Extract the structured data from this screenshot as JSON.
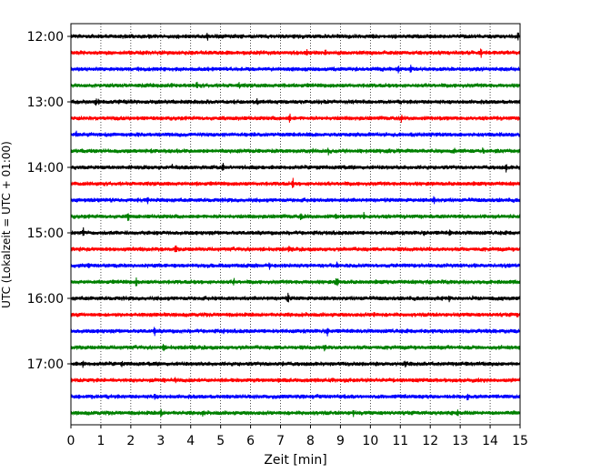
{
  "chart_data": {
    "type": "line",
    "title": "",
    "xlabel": "Zeit  [min]",
    "ylabel": "UTC (Lokalzeit = UTC + 01:00)",
    "xlim": [
      0,
      15
    ],
    "x_ticks": [
      "0",
      "1",
      "2",
      "3",
      "4",
      "5",
      "6",
      "7",
      "8",
      "9",
      "10",
      "11",
      "12",
      "13",
      "14",
      "15"
    ],
    "y_ticks": [
      "12:00",
      "13:00",
      "14:00",
      "15:00",
      "16:00",
      "17:00"
    ],
    "grid": "vertical dotted",
    "legend": "none",
    "row_minutes": 15,
    "series_colors": [
      "#000000",
      "#ff0000",
      "#0000ff",
      "#008000"
    ],
    "rows": [
      {
        "start": "12:00",
        "color": "#000000"
      },
      {
        "start": "12:15",
        "color": "#ff0000"
      },
      {
        "start": "12:30",
        "color": "#0000ff"
      },
      {
        "start": "12:45",
        "color": "#008000"
      },
      {
        "start": "13:00",
        "color": "#000000"
      },
      {
        "start": "13:15",
        "color": "#ff0000"
      },
      {
        "start": "13:30",
        "color": "#0000ff"
      },
      {
        "start": "13:45",
        "color": "#008000"
      },
      {
        "start": "14:00",
        "color": "#000000"
      },
      {
        "start": "14:15",
        "color": "#ff0000"
      },
      {
        "start": "14:30",
        "color": "#0000ff"
      },
      {
        "start": "14:45",
        "color": "#008000"
      },
      {
        "start": "15:00",
        "color": "#000000"
      },
      {
        "start": "15:15",
        "color": "#ff0000"
      },
      {
        "start": "15:30",
        "color": "#0000ff"
      },
      {
        "start": "15:45",
        "color": "#008000"
      },
      {
        "start": "16:00",
        "color": "#000000"
      },
      {
        "start": "16:15",
        "color": "#ff0000"
      },
      {
        "start": "16:30",
        "color": "#0000ff"
      },
      {
        "start": "16:45",
        "color": "#008000"
      },
      {
        "start": "17:00",
        "color": "#000000"
      },
      {
        "start": "17:15",
        "color": "#ff0000"
      },
      {
        "start": "17:30",
        "color": "#0000ff"
      },
      {
        "start": "17:45",
        "color": "#008000"
      }
    ]
  }
}
